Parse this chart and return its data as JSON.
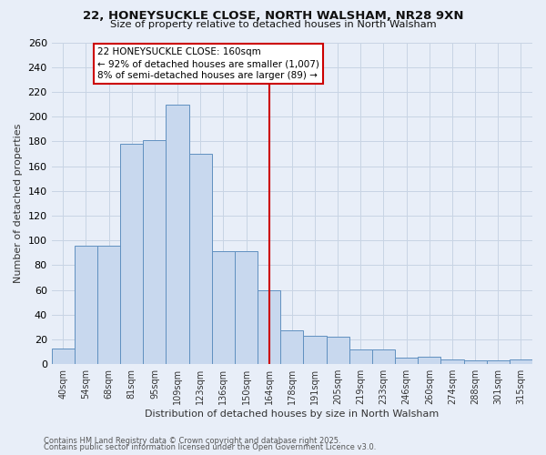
{
  "title1": "22, HONEYSUCKLE CLOSE, NORTH WALSHAM, NR28 9XN",
  "title2": "Size of property relative to detached houses in North Walsham",
  "xlabel": "Distribution of detached houses by size in North Walsham",
  "ylabel": "Number of detached properties",
  "footer1": "Contains HM Land Registry data © Crown copyright and database right 2025.",
  "footer2": "Contains public sector information licensed under the Open Government Licence v3.0.",
  "bar_labels": [
    "40sqm",
    "54sqm",
    "68sqm",
    "81sqm",
    "95sqm",
    "109sqm",
    "123sqm",
    "136sqm",
    "150sqm",
    "164sqm",
    "178sqm",
    "191sqm",
    "205sqm",
    "219sqm",
    "233sqm",
    "246sqm",
    "260sqm",
    "274sqm",
    "288sqm",
    "301sqm",
    "315sqm"
  ],
  "bar_values": [
    13,
    96,
    96,
    178,
    181,
    210,
    170,
    91,
    91,
    60,
    27,
    23,
    22,
    12,
    12,
    5,
    6,
    4,
    3,
    3,
    4
  ],
  "bar_color": "#c8d8ee",
  "bar_edge_color": "#6090c0",
  "grid_color": "#c8d4e4",
  "background_color": "#e8eef8",
  "vline_x": 9.0,
  "vline_color": "#cc0000",
  "annotation_line1": "22 HONEYSUCKLE CLOSE: 160sqm",
  "annotation_line2": "← 92% of detached houses are smaller (1,007)",
  "annotation_line3": "8% of semi-detached houses are larger (89) →",
  "annotation_box_color": "#cc0000",
  "ylim": [
    0,
    260
  ],
  "yticks": [
    0,
    20,
    40,
    60,
    80,
    100,
    120,
    140,
    160,
    180,
    200,
    220,
    240,
    260
  ]
}
